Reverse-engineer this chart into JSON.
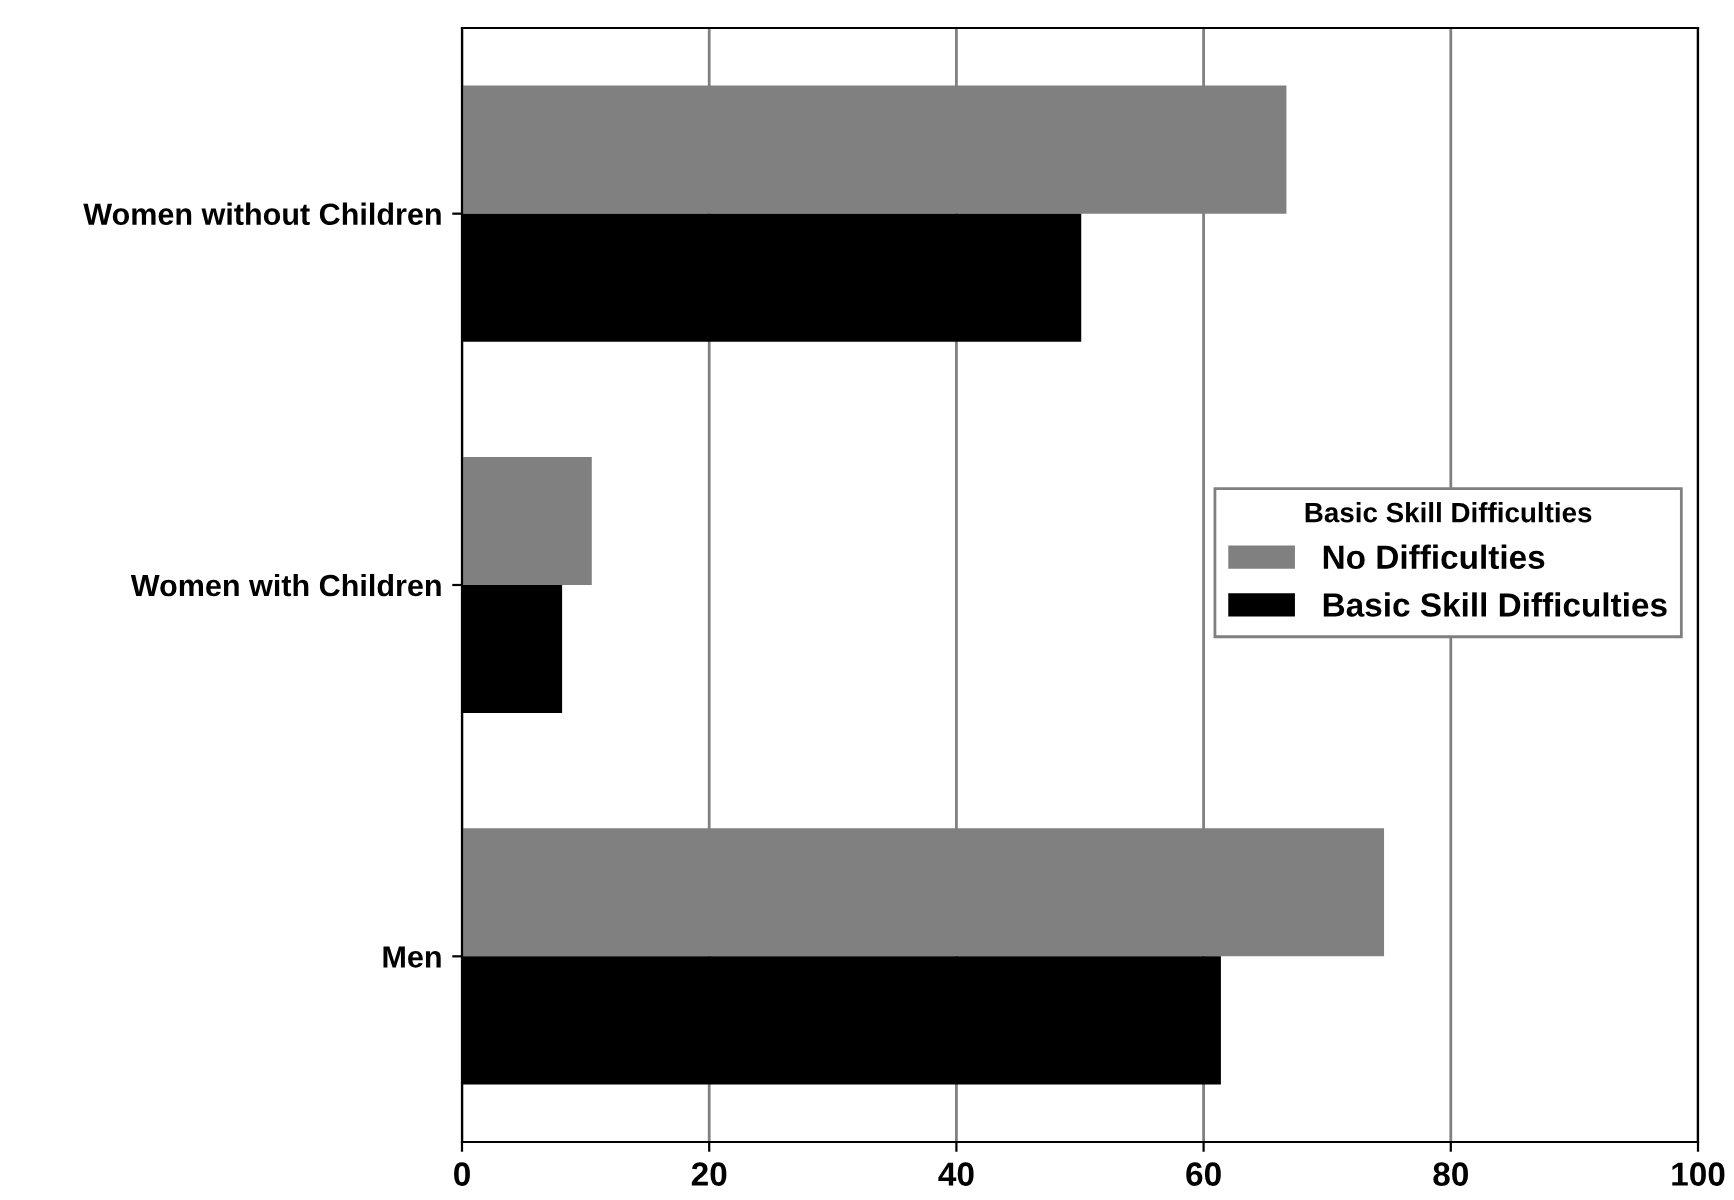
{
  "chart_data": {
    "type": "bar",
    "orientation": "horizontal",
    "categories": [
      "Women without Children",
      "Women with Children",
      "Men"
    ],
    "series": [
      {
        "name": "No Difficulties",
        "color": "#808080",
        "values": [
          66.7,
          10.5,
          74.6
        ]
      },
      {
        "name": "Basic Skill Difficulties",
        "color": "#000000",
        "values": [
          50.1,
          8.1,
          61.4
        ]
      }
    ],
    "legend_title": "Basic Skill Difficulties",
    "legend": "right",
    "xlim": [
      0,
      100
    ],
    "xticks": [
      0,
      20,
      40,
      60,
      80,
      100
    ],
    "grid": "x"
  }
}
